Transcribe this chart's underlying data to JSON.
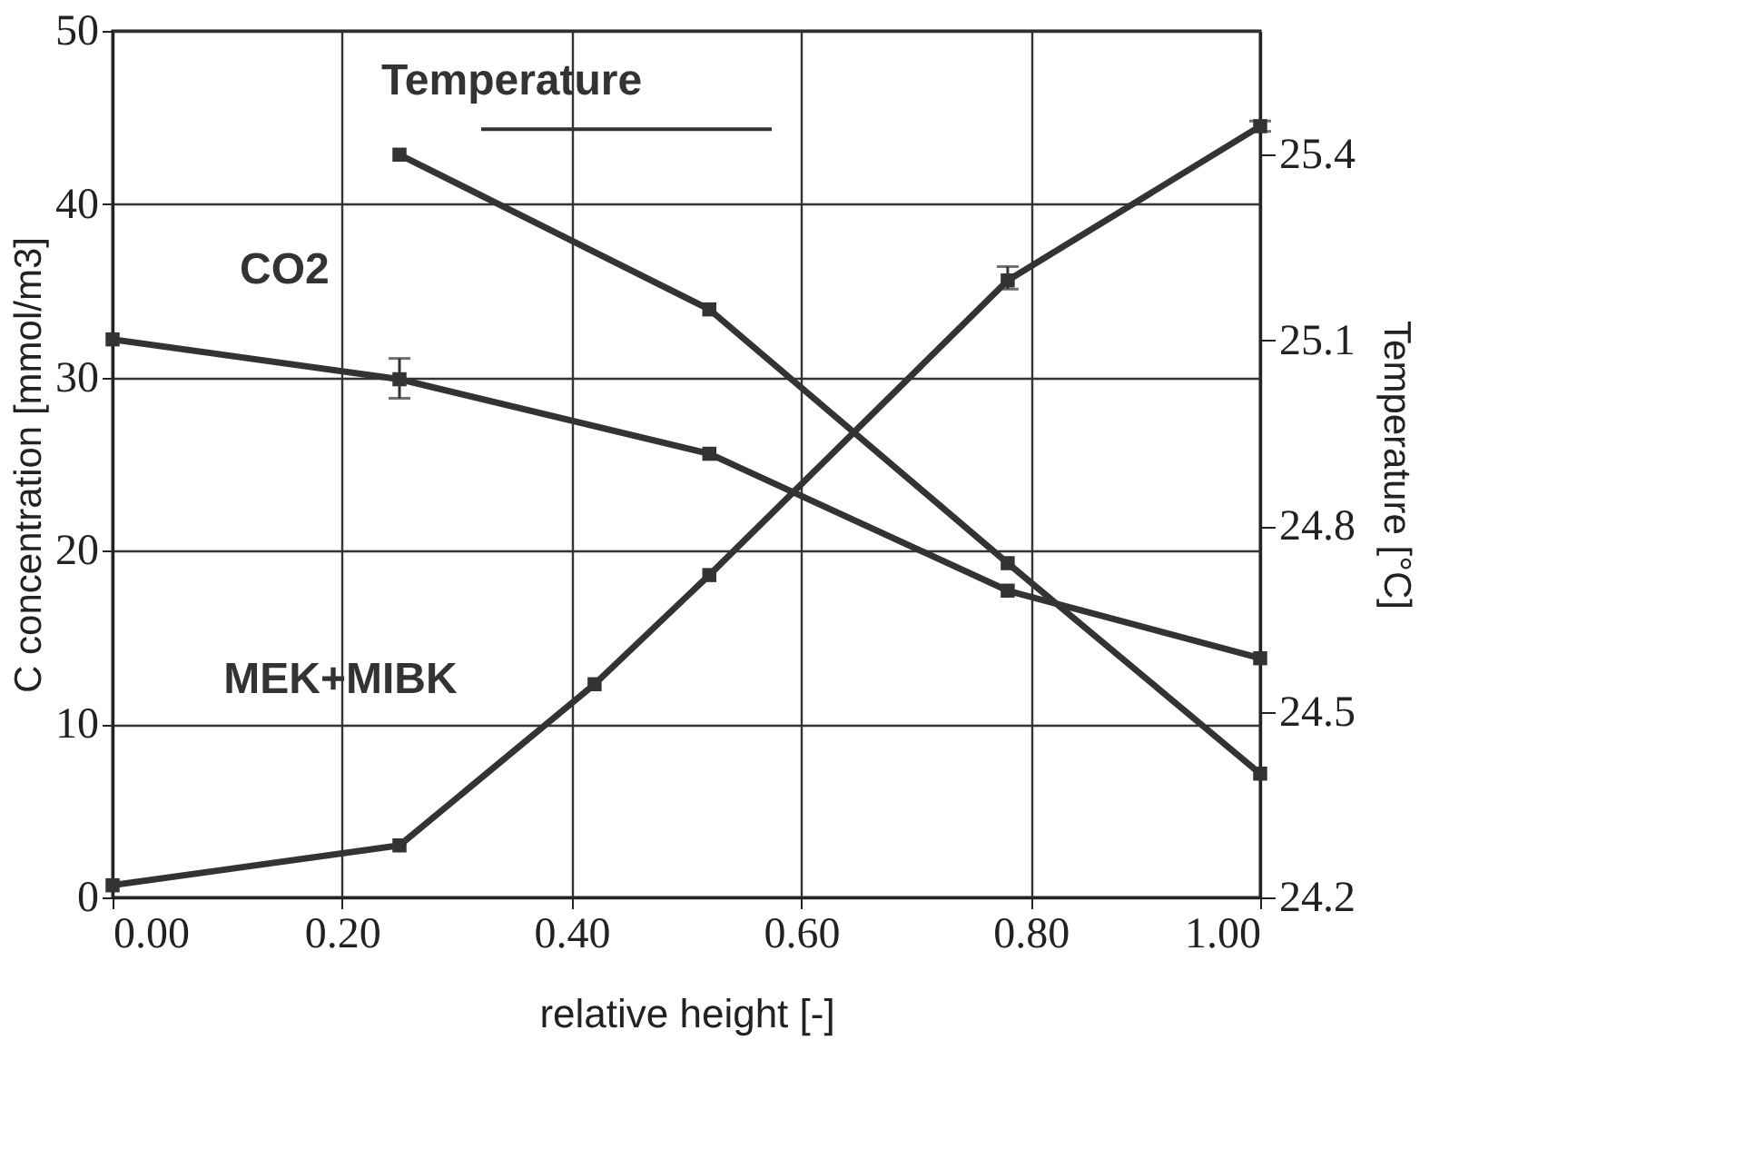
{
  "chart_data": {
    "type": "line",
    "xlabel": "relative height  [-]",
    "ylabel": "C concentration [mmol/m3]",
    "y2label": "Temperature  [°C]",
    "xlim": [
      0,
      1
    ],
    "xticks": [
      {
        "value": 0,
        "label": "0.00"
      },
      {
        "value": 0.2,
        "label": "0.20"
      },
      {
        "value": 0.4,
        "label": "0.40"
      },
      {
        "value": 0.6,
        "label": "0.60"
      },
      {
        "value": 0.8,
        "label": "0.80"
      },
      {
        "value": 1,
        "label": "1.00"
      }
    ],
    "ylim": [
      0,
      50
    ],
    "yticks": [
      0,
      10,
      20,
      30,
      40,
      50
    ],
    "y2lim": [
      24.2,
      25.6
    ],
    "y2ticks": [
      24.2,
      24.5,
      24.8,
      25.1,
      25.4
    ],
    "grid": true,
    "marker": "square",
    "line_style": "solid",
    "series": [
      {
        "name": "CO2",
        "color": "#333333",
        "x": [
          0,
          0.25,
          0.52,
          0.78,
          1.0
        ],
        "values": [
          32.2,
          29.9,
          25.6,
          17.7,
          13.8
        ],
        "errors": [
          null,
          [
            28.8,
            31.1
          ],
          null,
          null,
          null
        ]
      },
      {
        "name": "MEK+MIBK",
        "color": "#333333",
        "x": [
          0,
          0.25,
          0.42,
          0.52,
          0.78,
          1.0
        ],
        "values": [
          0.7,
          3.0,
          12.3,
          18.6,
          35.6,
          44.5
        ],
        "errors": [
          null,
          null,
          null,
          null,
          [
            35.1,
            36.4
          ],
          [
            44.2,
            44.8
          ]
        ]
      },
      {
        "name": "Temperature",
        "color": "#333333",
        "axis": "y2",
        "x": [
          0.25,
          0.52,
          0.78,
          1.0
        ],
        "values": [
          25.4,
          25.15,
          24.74,
          24.4
        ]
      }
    ]
  }
}
